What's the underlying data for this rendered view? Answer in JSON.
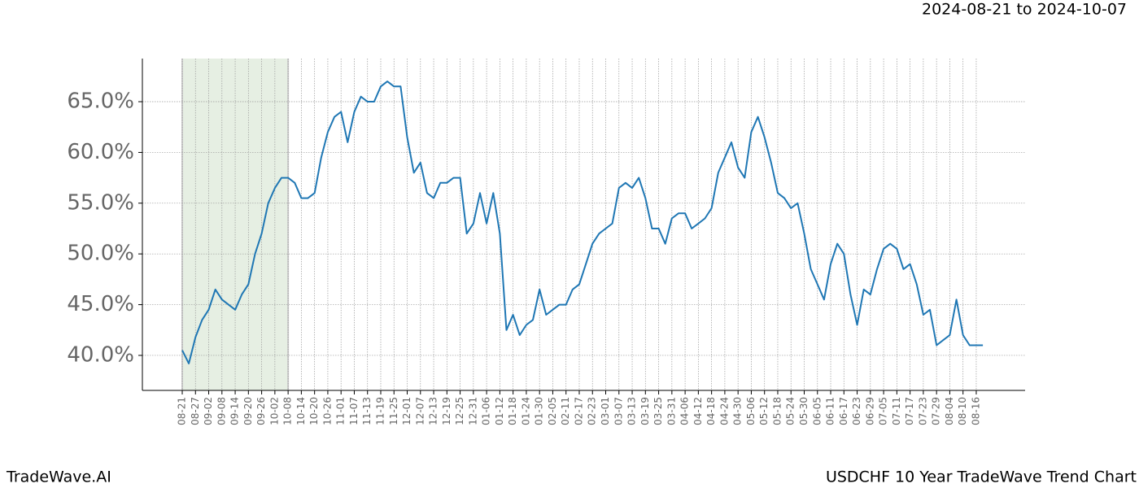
{
  "chart_data": {
    "type": "line",
    "title": "USDCHF 10 Year TradeWave Trend Chart",
    "subtitle": "2024-08-21 to 2024-10-07",
    "annotations": [
      "TradeWave.AI"
    ],
    "categories": [
      "08-21",
      null,
      "08-27",
      null,
      "09-02",
      null,
      "09-08",
      null,
      "09-14",
      null,
      "09-20",
      null,
      "09-26",
      null,
      "10-02",
      null,
      "10-08",
      null,
      "10-14",
      null,
      "10-20",
      null,
      "10-26",
      null,
      "11-01",
      null,
      "11-07",
      null,
      "11-13",
      null,
      "11-19",
      null,
      "11-25",
      null,
      "12-01",
      null,
      "12-07",
      null,
      "12-13",
      null,
      "12-19",
      null,
      "12-25",
      null,
      "12-31",
      null,
      "01-06",
      null,
      "01-12",
      null,
      "01-18",
      null,
      "01-24",
      null,
      "01-30",
      null,
      "02-05",
      null,
      "02-11",
      null,
      "02-17",
      null,
      "02-23",
      null,
      "03-01",
      null,
      "03-07",
      null,
      "03-13",
      null,
      "03-19",
      null,
      "03-25",
      null,
      "03-31",
      null,
      "04-06",
      null,
      "04-12",
      null,
      "04-18",
      null,
      "04-24",
      null,
      "04-30",
      null,
      "05-06",
      null,
      "05-12",
      null,
      "05-18",
      null,
      "05-24",
      null,
      "05-30",
      null,
      "06-05",
      null,
      "06-11",
      null,
      "06-17",
      null,
      "06-23",
      null,
      "06-29",
      null,
      "07-05",
      null,
      "07-11",
      null,
      "07-17",
      null,
      "07-23",
      null,
      "07-29",
      null,
      "08-04",
      null,
      "08-10",
      null,
      "08-16",
      null
    ],
    "series": [
      {
        "color": "#1f77b4",
        "values": [
          40.5,
          39.2,
          41.8,
          43.5,
          44.5,
          46.5,
          45.5,
          45,
          44.5,
          46,
          47,
          50,
          52,
          55,
          56.5,
          57.5,
          57.5,
          57,
          55.5,
          55.5,
          56,
          59.5,
          62,
          63.5,
          64,
          61,
          64,
          65.5,
          65,
          65,
          66.5,
          67,
          66.5,
          66.5,
          61.5,
          58,
          59,
          56,
          55.5,
          57,
          57,
          57.5,
          57.5,
          52,
          53,
          56,
          53,
          56,
          52,
          42.5,
          44,
          42,
          43,
          43.5,
          46.5,
          44,
          44.5,
          45,
          45,
          46.5,
          47,
          49,
          51,
          52,
          52.5,
          53,
          56.5,
          57,
          56.5,
          57.5,
          55.5,
          52.5,
          52.5,
          51,
          53.5,
          54,
          54,
          52.5,
          53,
          53.5,
          54.5,
          58,
          59.5,
          61,
          58.5,
          57.5,
          62,
          63.5,
          61.5,
          59,
          56,
          55.5,
          54.5,
          55,
          52,
          48.5,
          47,
          45.5,
          49,
          51,
          50,
          46,
          43,
          46.5,
          46,
          48.5,
          50.5,
          51,
          50.5,
          48.5,
          49,
          47,
          44,
          44.5,
          41,
          41.5,
          42,
          45.5,
          42,
          41,
          41,
          41
        ]
      }
    ],
    "shaded_span": {
      "from": 0,
      "to": 16,
      "color": "#e6efe3"
    },
    "ylim": [
      36.55,
      69.25
    ],
    "yticks": [
      {
        "value": 40,
        "label": "40.0%"
      },
      {
        "value": 45,
        "label": "45.0%"
      },
      {
        "value": 50,
        "label": "50.0%"
      },
      {
        "value": 55,
        "label": "55.0%"
      },
      {
        "value": 60,
        "label": "60.0%"
      },
      {
        "value": 65,
        "label": "65.0%"
      }
    ],
    "grid": true
  }
}
